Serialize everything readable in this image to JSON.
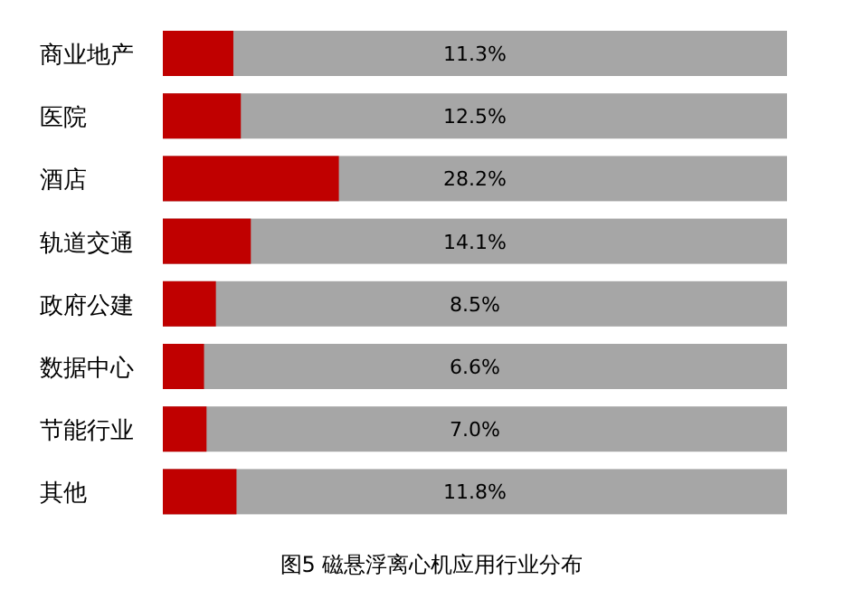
{
  "chart_data": {
    "type": "bar",
    "orientation": "horizontal",
    "title": "图5  磁悬浮离心机应用行业分布",
    "categories": [
      "商业地产",
      "医院",
      "酒店",
      "轨道交通",
      "政府公建",
      "数据中心",
      "节能行业",
      "其他"
    ],
    "values": [
      11.3,
      12.5,
      28.2,
      14.1,
      8.5,
      6.6,
      7.0,
      11.8
    ],
    "value_labels": [
      "11.3%",
      "12.5%",
      "28.2%",
      "14.1%",
      "8.5%",
      "6.6%",
      "7.0%",
      "11.8%"
    ],
    "color": "#c00000",
    "xlim": [
      0,
      100
    ],
    "tick_labels": "y"
  }
}
